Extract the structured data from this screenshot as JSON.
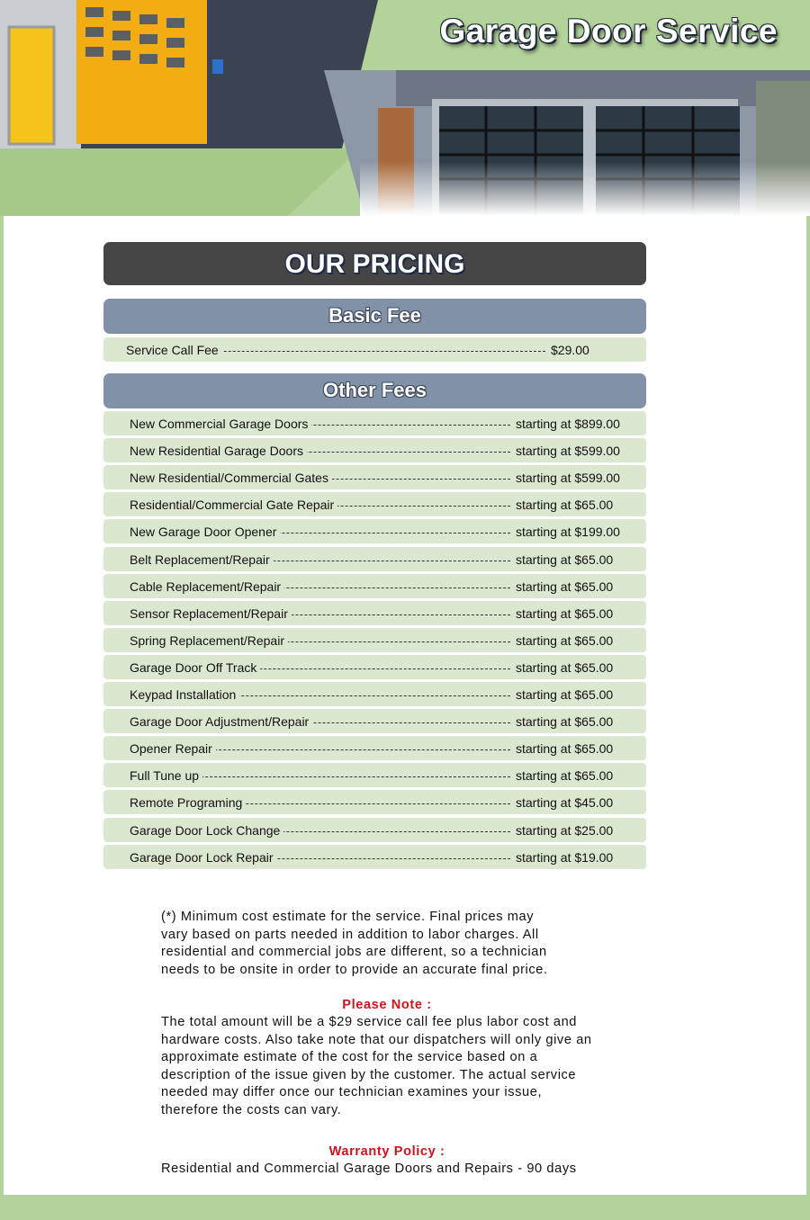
{
  "header": {
    "title": "Garage Door Service"
  },
  "pricing": {
    "title": "OUR PRICING",
    "basic": {
      "heading": "Basic Fee",
      "rows": [
        {
          "name": "Service Call Fee",
          "price": "$29.00"
        }
      ]
    },
    "other": {
      "heading": "Other Fees",
      "rows": [
        {
          "name": "New Commercial Garage Doors",
          "price": "starting at $899.00"
        },
        {
          "name": "New Residential Garage Doors",
          "price": "starting at $599.00"
        },
        {
          "name": "New Residential/Commercial Gates",
          "price": "starting at $599.00"
        },
        {
          "name": "Residential/Commercial Gate Repair",
          "price": "starting at $65.00"
        },
        {
          "name": "New Garage Door Opener",
          "price": "starting at $199.00"
        },
        {
          "name": "Belt Replacement/Repair",
          "price": "starting at $65.00"
        },
        {
          "name": "Cable Replacement/Repair",
          "price": "starting at $65.00"
        },
        {
          "name": "Sensor Replacement/Repair",
          "price": "starting at $65.00"
        },
        {
          "name": "Spring Replacement/Repair",
          "price": "starting at $65.00"
        },
        {
          "name": "Garage Door Off Track",
          "price": "starting at $65.00"
        },
        {
          "name": "Keypad Installation",
          "price": "starting at $65.00"
        },
        {
          "name": "Garage Door Adjustment/Repair",
          "price": "starting at $65.00"
        },
        {
          "name": "Opener Repair",
          "price": "starting at $65.00"
        },
        {
          "name": "Full Tune up",
          "price": "starting at $65.00"
        },
        {
          "name": "Remote Programing",
          "price": "starting at $45.00"
        },
        {
          "name": "Garage Door Lock Change",
          "price": "starting at $25.00"
        },
        {
          "name": "Garage Door Lock Repair",
          "price": "starting at $19.00"
        }
      ]
    }
  },
  "notes": {
    "estimate": [
      "(*) Minimum cost estimate for the service. Final prices may",
      "vary based on parts needed in addition to labor charges. All",
      "residential and commercial jobs are different, so a technician",
      "needs to be onsite in order to provide an accurate final price."
    ],
    "please_note_heading": "Please Note :",
    "please_note": [
      "The total amount will be a $29 service call fee plus labor cost and",
      "hardware costs. Also take note that our dispatchers will only give an",
      "approximate estimate of the cost for the service based on a",
      "description of the issue given by the customer. The actual service",
      "needed may differ once our technician examines your issue,",
      "therefore the costs can vary."
    ],
    "warranty_heading": "Warranty Policy :",
    "warranty": "Residential and Commercial Garage Doors and Repairs - 90 days"
  }
}
